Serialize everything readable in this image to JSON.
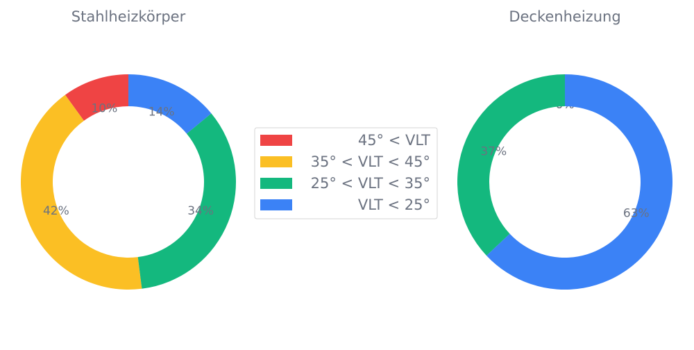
{
  "chart_data": [
    {
      "type": "pie",
      "title": "Stahlheizkörper",
      "categories": [
        "45° < VLT",
        "35° < VLT < 45°",
        "25° < VLT < 35°",
        "VLT < 25°"
      ],
      "values": [
        10,
        42,
        34,
        14
      ],
      "value_labels": [
        "10%",
        "42%",
        "34%",
        "14%"
      ],
      "colors": [
        "#ef4444",
        "#fbbf24",
        "#14b87e",
        "#3b82f6"
      ],
      "donut": true
    },
    {
      "type": "pie",
      "title": "Deckenheizung",
      "categories": [
        "45° < VLT",
        "35° < VLT < 45°",
        "25° < VLT < 35°",
        "VLT < 25°"
      ],
      "values": [
        0,
        0,
        37,
        63
      ],
      "value_labels": [
        "0%",
        "0%",
        "37%",
        "63%"
      ],
      "colors": [
        "#ef4444",
        "#fbbf24",
        "#14b87e",
        "#3b82f6"
      ],
      "donut": true
    }
  ],
  "legend": {
    "placement": "center",
    "entries": [
      {
        "label": "45° < VLT",
        "color": "#ef4444"
      },
      {
        "label": "35° < VLT < 45°",
        "color": "#fbbf24"
      },
      {
        "label": "25° < VLT < 35°",
        "color": "#14b87e"
      },
      {
        "label": "VLT < 25°",
        "color": "#3b82f6"
      }
    ]
  }
}
